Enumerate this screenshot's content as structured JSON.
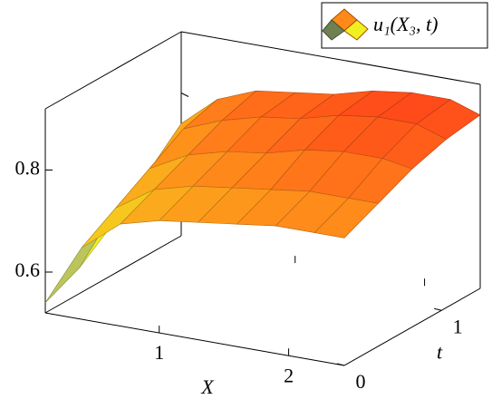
{
  "chart_data": {
    "type": "surface",
    "x_label": "X",
    "t_label": "t",
    "legend": "u₁(X₃, t)",
    "x": [
      0.12,
      0.4,
      0.7,
      1.0,
      1.3,
      1.6,
      1.9,
      2.2,
      2.43
    ],
    "t": [
      0,
      0.35,
      0.7,
      1.05,
      1.4
    ],
    "z": [
      [
        0.54,
        0.66,
        0.72,
        0.74,
        0.75,
        0.76,
        0.77,
        0.77,
        0.77
      ],
      [
        0.57,
        0.7,
        0.75,
        0.77,
        0.78,
        0.79,
        0.8,
        0.8,
        0.8
      ],
      [
        0.62,
        0.74,
        0.78,
        0.8,
        0.81,
        0.83,
        0.84,
        0.84,
        0.83
      ],
      [
        0.68,
        0.78,
        0.81,
        0.83,
        0.84,
        0.86,
        0.87,
        0.87,
        0.85
      ],
      [
        0.74,
        0.8,
        0.83,
        0.84,
        0.85,
        0.87,
        0.88,
        0.88,
        0.86
      ]
    ],
    "xlim": [
      0.12,
      2.43
    ],
    "tlim": [
      0,
      1.4
    ],
    "zlim": [
      0.52,
      0.92
    ],
    "xticks": [
      1,
      2
    ],
    "tticks": [
      0,
      1
    ],
    "zticks": [
      0.6,
      0.8
    ],
    "colormap": [
      "#3050ff",
      "#f0f020",
      "#ff8a1a",
      "#ff2a1a"
    ]
  }
}
